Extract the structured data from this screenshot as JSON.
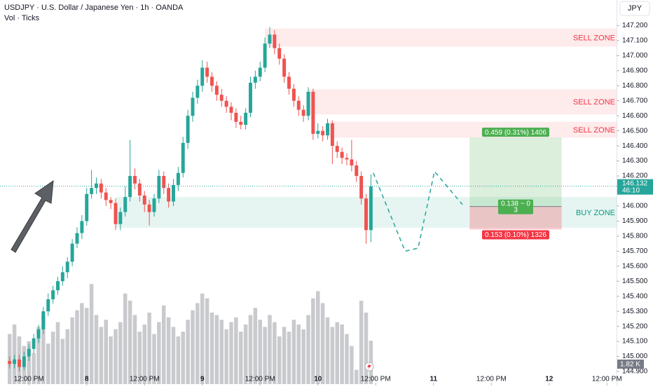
{
  "chart_data": {
    "type": "candlestick",
    "title": "USDJPY · U.S. Dollar / Japanese Yen · 1h · OANDA",
    "subtitle": "Vol · Ticks",
    "currency": "JPY",
    "up_color": "#26a69a",
    "down_color": "#ef5350",
    "volume_color": "#c9cacd",
    "grid": false,
    "xlim": [
      -2,
      126
    ],
    "ylim": [
      144.9,
      147.37
    ],
    "volume_ylim": [
      0,
      5
    ],
    "xticks": [
      {
        "value": 4,
        "label": "12:00 PM"
      },
      {
        "value": 16,
        "label": "8"
      },
      {
        "value": 28,
        "label": "12:00 PM"
      },
      {
        "value": 40,
        "label": "9"
      },
      {
        "value": 52,
        "label": "12:00 PM"
      },
      {
        "value": 64,
        "label": "10"
      },
      {
        "value": 76,
        "label": "12:00 PM"
      },
      {
        "value": 88,
        "label": "11"
      },
      {
        "value": 100,
        "label": "12:00 PM"
      },
      {
        "value": 112,
        "label": "12"
      },
      {
        "value": 124,
        "label": "12:00 PM"
      }
    ],
    "yticks": [
      {
        "value": 144.9,
        "label": "144.900"
      },
      {
        "value": 145.0,
        "label": "145.000"
      },
      {
        "value": 145.1,
        "label": "145.100"
      },
      {
        "value": 145.2,
        "label": "145.200"
      },
      {
        "value": 145.3,
        "label": "145.300"
      },
      {
        "value": 145.4,
        "label": "145.400"
      },
      {
        "value": 145.5,
        "label": "145.500"
      },
      {
        "value": 145.6,
        "label": "145.600"
      },
      {
        "value": 145.7,
        "label": "145.700"
      },
      {
        "value": 145.8,
        "label": "145.800"
      },
      {
        "value": 145.9,
        "label": "145.900"
      },
      {
        "value": 146.0,
        "label": "146.000"
      },
      {
        "value": 146.1,
        "label": "146.100"
      },
      {
        "value": 146.2,
        "label": "146.200"
      },
      {
        "value": 146.3,
        "label": "146.300"
      },
      {
        "value": 146.4,
        "label": "146.400"
      },
      {
        "value": 146.5,
        "label": "146.500"
      },
      {
        "value": 146.6,
        "label": "146.600"
      },
      {
        "value": 146.7,
        "label": "146.700"
      },
      {
        "value": 146.8,
        "label": "146.800"
      },
      {
        "value": 146.9,
        "label": "146.900"
      },
      {
        "value": 147.0,
        "label": "147.000"
      },
      {
        "value": 147.1,
        "label": "147.100"
      },
      {
        "value": 147.2,
        "label": "147.200"
      }
    ],
    "x": [
      0,
      1,
      2,
      3,
      4,
      5,
      6,
      7,
      8,
      9,
      10,
      11,
      12,
      13,
      14,
      15,
      16,
      17,
      18,
      19,
      20,
      21,
      22,
      23,
      24,
      25,
      26,
      27,
      28,
      29,
      30,
      31,
      32,
      33,
      34,
      35,
      36,
      37,
      38,
      39,
      40,
      41,
      42,
      43,
      44,
      45,
      46,
      47,
      48,
      49,
      50,
      51,
      52,
      53,
      54,
      55,
      56,
      57,
      58,
      59,
      60,
      61,
      62,
      63,
      64,
      65,
      66,
      67,
      68,
      69,
      70,
      71,
      72,
      73,
      74,
      75
    ],
    "open": [
      144.97,
      144.95,
      144.98,
      144.93,
      145.0,
      145.05,
      145.12,
      145.18,
      145.3,
      145.38,
      145.44,
      145.5,
      145.56,
      145.63,
      145.75,
      145.82,
      145.9,
      146.08,
      146.12,
      146.15,
      146.09,
      146.04,
      146.02,
      145.88,
      145.96,
      146.06,
      146.2,
      146.15,
      146.07,
      146.01,
      145.96,
      146.05,
      146.2,
      146.12,
      146.03,
      146.14,
      146.22,
      146.42,
      146.6,
      146.72,
      146.8,
      146.92,
      146.86,
      146.8,
      146.74,
      146.7,
      146.66,
      146.62,
      146.56,
      146.54,
      146.62,
      146.82,
      146.86,
      146.92,
      147.08,
      147.14,
      147.05,
      146.98,
      146.86,
      146.78,
      146.7,
      146.64,
      146.6,
      146.76,
      146.48,
      146.5,
      146.47,
      146.55,
      146.4,
      146.36,
      146.32,
      146.31,
      146.27,
      146.2,
      146.05,
      145.84
    ],
    "high": [
      145.0,
      145.01,
      145.01,
      145.03,
      145.08,
      145.15,
      145.21,
      145.33,
      145.42,
      145.47,
      145.53,
      145.6,
      145.66,
      145.78,
      145.86,
      145.94,
      146.12,
      146.24,
      146.19,
      146.18,
      146.12,
      146.06,
      146.05,
      145.99,
      146.13,
      146.44,
      146.25,
      146.18,
      146.1,
      146.04,
      146.08,
      146.24,
      146.23,
      146.15,
      146.18,
      146.26,
      146.46,
      146.64,
      146.76,
      146.84,
      146.97,
      146.96,
      146.89,
      146.83,
      146.78,
      146.73,
      146.69,
      146.65,
      146.6,
      146.65,
      146.86,
      146.9,
      146.96,
      147.12,
      147.19,
      147.17,
      147.08,
      147.01,
      146.89,
      146.81,
      146.73,
      146.67,
      146.79,
      146.78,
      146.55,
      146.53,
      146.58,
      146.57,
      146.43,
      146.39,
      146.35,
      146.44,
      146.3,
      146.23,
      146.08,
      146.21
    ],
    "low": [
      144.92,
      144.92,
      144.9,
      144.91,
      144.97,
      145.02,
      145.09,
      145.15,
      145.27,
      145.35,
      145.41,
      145.47,
      145.52,
      145.6,
      145.72,
      145.78,
      145.87,
      146.05,
      146.08,
      146.05,
      146.0,
      145.98,
      145.84,
      145.84,
      145.93,
      146.03,
      146.11,
      146.03,
      145.96,
      145.87,
      145.93,
      146.02,
      146.08,
      145.99,
      146.0,
      146.1,
      146.19,
      146.38,
      146.56,
      146.68,
      146.76,
      146.82,
      146.76,
      146.7,
      146.66,
      146.62,
      146.57,
      146.52,
      146.51,
      146.51,
      146.59,
      146.78,
      146.83,
      146.89,
      147.05,
      147.01,
      146.94,
      146.82,
      146.74,
      146.66,
      146.6,
      146.56,
      146.57,
      146.44,
      146.45,
      146.43,
      146.44,
      146.28,
      146.32,
      146.28,
      146.27,
      146.23,
      146.16,
      146.01,
      145.75,
      145.76
    ],
    "close": [
      144.95,
      144.98,
      144.93,
      145.0,
      145.05,
      145.12,
      145.18,
      145.3,
      145.38,
      145.44,
      145.5,
      145.56,
      145.63,
      145.75,
      145.82,
      145.9,
      146.08,
      146.12,
      146.15,
      146.09,
      146.04,
      146.02,
      145.88,
      145.96,
      146.06,
      146.2,
      146.15,
      146.07,
      146.01,
      145.96,
      146.05,
      146.2,
      146.12,
      146.03,
      146.14,
      146.22,
      146.42,
      146.6,
      146.72,
      146.8,
      146.92,
      146.86,
      146.8,
      146.74,
      146.7,
      146.66,
      146.62,
      146.56,
      146.54,
      146.62,
      146.82,
      146.86,
      146.92,
      147.08,
      147.14,
      147.05,
      146.98,
      146.86,
      146.78,
      146.7,
      146.64,
      146.6,
      146.76,
      146.48,
      146.5,
      146.47,
      146.55,
      146.4,
      146.36,
      146.32,
      146.31,
      146.27,
      146.2,
      146.05,
      145.84,
      146.13
    ],
    "volume": [
      2.1,
      2.5,
      2.0,
      1.6,
      1.8,
      1.3,
      2.4,
      2.9,
      1.7,
      2.2,
      2.6,
      1.9,
      2.3,
      2.8,
      3.1,
      3.4,
      3.2,
      4.2,
      2.9,
      2.4,
      2.7,
      2.0,
      2.3,
      2.6,
      3.8,
      3.5,
      2.9,
      2.2,
      2.5,
      3.0,
      2.1,
      2.6,
      3.3,
      2.8,
      2.4,
      2.0,
      2.2,
      2.7,
      3.1,
      3.4,
      3.8,
      3.6,
      3.0,
      2.9,
      2.7,
      2.3,
      2.6,
      2.8,
      2.2,
      2.5,
      2.9,
      3.2,
      2.7,
      2.4,
      2.9,
      2.6,
      2.0,
      2.4,
      2.2,
      2.7,
      2.5,
      2.3,
      2.9,
      3.6,
      3.9,
      3.4,
      2.8,
      2.4,
      2.6,
      2.5,
      2.1,
      1.6,
      0.6,
      3.5,
      3.0,
      1.82
    ],
    "last_volume_label": "1.82 K",
    "last_price": {
      "value": 146.132,
      "label": "146.132"
    },
    "countdown": "46:10",
    "zones": [
      {
        "label": "SELL ZONE",
        "start": 53,
        "top": 147.18,
        "bottom": 147.06,
        "color": "#f23645"
      },
      {
        "label": "SELL ZONE",
        "start": 62,
        "top": 146.776,
        "bottom": 146.61,
        "color": "#f23645"
      },
      {
        "label": "SELL ZONE",
        "start": 66,
        "top": 146.56,
        "bottom": 146.455,
        "color": "#f23645"
      },
      {
        "label": "BUY ZONE",
        "start": 22,
        "top": 146.06,
        "bottom": 145.855,
        "color": "#089981"
      }
    ],
    "position": {
      "start": 95.5,
      "end": 114.6,
      "entry": 145.997,
      "target": 146.456,
      "stop": 145.844,
      "target_label": "0.459 (0.31%) 1406",
      "entry_label": [
        "0.138 ~ 0",
        "3"
      ],
      "stop_label": "0.153 (0.10%) 1326",
      "profit_color": "#4caf50",
      "loss_color": "#f23645"
    },
    "projection": {
      "x": [
        75.5,
        82.1,
        84.8,
        88.2,
        94
      ],
      "y": [
        146.22,
        145.7,
        145.72,
        146.23,
        146.01
      ],
      "color": "#26a69a"
    }
  }
}
